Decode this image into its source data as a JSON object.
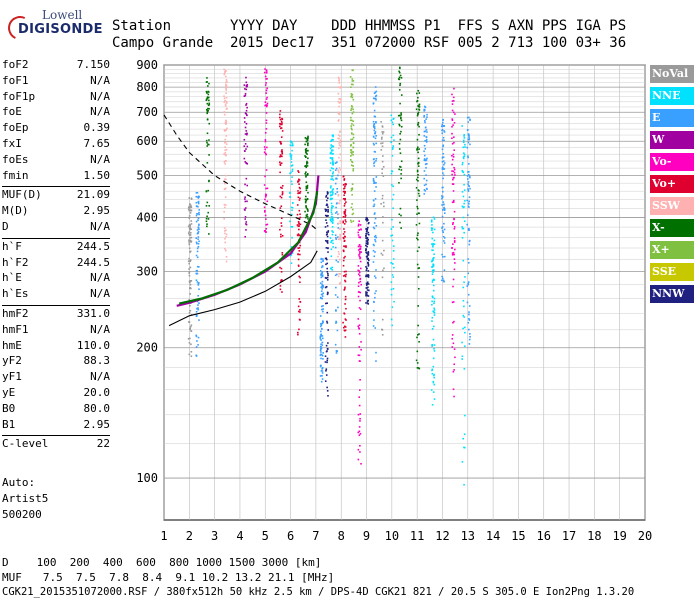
{
  "logo": {
    "line1": "Lowell",
    "line2": "DIGISONDE"
  },
  "header": {
    "row1": "Station       YYYY DAY    DDD HHMMSS P1  FFS S AXN PPS IGA PS",
    "row2": "Campo Grande  2015 Dec17  351 072000 RSF 005 2 713 100 03+ 36"
  },
  "params": [
    {
      "key": "foF2",
      "value": "7.150"
    },
    {
      "key": "foF1",
      "value": "N/A"
    },
    {
      "key": "foF1p",
      "value": "N/A"
    },
    {
      "key": "foE",
      "value": "N/A"
    },
    {
      "key": "foEp",
      "value": "0.39"
    },
    {
      "key": "fxI",
      "value": "7.65"
    },
    {
      "key": "foEs",
      "value": "N/A"
    },
    {
      "key": "fmin",
      "value": "1.50"
    },
    {
      "key": "MUF(D)",
      "value": "21.09"
    },
    {
      "key": "M(D)",
      "value": "2.95"
    },
    {
      "key": "D",
      "value": "N/A"
    },
    {
      "key": "h`F",
      "value": "244.5"
    },
    {
      "key": "h`F2",
      "value": "244.5"
    },
    {
      "key": "h`E",
      "value": "N/A"
    },
    {
      "key": "h`Es",
      "value": "N/A"
    },
    {
      "key": "hmF2",
      "value": "331.0"
    },
    {
      "key": "hmF1",
      "value": "N/A"
    },
    {
      "key": "hmE",
      "value": "110.0"
    },
    {
      "key": "yF2",
      "value": "88.3"
    },
    {
      "key": "yF1",
      "value": "N/A"
    },
    {
      "key": "yE",
      "value": "20.0"
    },
    {
      "key": "B0",
      "value": "80.0"
    },
    {
      "key": "B1",
      "value": "2.95"
    },
    {
      "key": "C-level",
      "value": "22"
    }
  ],
  "auto": {
    "label": "Auto:",
    "artist": "Artist5",
    "version": "500200"
  },
  "legend": [
    {
      "label": "NoVal",
      "bg": "#9a9a9a",
      "fg": "#ffffff"
    },
    {
      "label": "NNE",
      "bg": "#00e0ff",
      "fg": "#ffffff"
    },
    {
      "label": "E",
      "bg": "#3aa0ff",
      "fg": "#ffffff"
    },
    {
      "label": "W",
      "bg": "#a000a0",
      "fg": "#ffffff"
    },
    {
      "label": "Vo-",
      "bg": "#ff00c0",
      "fg": "#ffffff"
    },
    {
      "label": "Vo+",
      "bg": "#e00030",
      "fg": "#ffffff"
    },
    {
      "label": "SSW",
      "bg": "#ffb0b0",
      "fg": "#ffffff"
    },
    {
      "label": "X-",
      "bg": "#007000",
      "fg": "#ffffff"
    },
    {
      "label": "X+",
      "bg": "#80c040",
      "fg": "#ffffff"
    },
    {
      "label": "SSE",
      "bg": "#c8c800",
      "fg": "#ffffff"
    },
    {
      "label": "NNW",
      "bg": "#202080",
      "fg": "#ffffff"
    }
  ],
  "chart_data": {
    "type": "scatter",
    "xlabel": "",
    "ylabel": "",
    "xlim": [
      1,
      20
    ],
    "ylim": [
      80,
      900
    ],
    "x_ticks": [
      "1",
      "2",
      "3",
      "4",
      "5",
      "6",
      "7",
      "8",
      "9",
      "10",
      "11",
      "12",
      "13",
      "14",
      "15",
      "16",
      "17",
      "18",
      "19",
      "20"
    ],
    "y_ticks": [
      "100",
      "200",
      "300",
      "400",
      "500",
      "600",
      "700",
      "800",
      "900"
    ],
    "grid": true,
    "y_scale": "log",
    "series": [
      {
        "color": "#000000",
        "style": "solid",
        "points": [
          [
            1.2,
            225
          ],
          [
            2,
            237
          ],
          [
            3,
            245
          ],
          [
            4,
            255
          ],
          [
            5,
            270
          ],
          [
            6,
            292
          ],
          [
            6.8,
            315
          ],
          [
            7.05,
            335
          ]
        ]
      },
      {
        "color": "#000000",
        "style": "dashed",
        "points": [
          [
            1.0,
            690
          ],
          [
            1.5,
            620
          ],
          [
            2,
            565
          ],
          [
            3,
            500
          ],
          [
            4,
            460
          ],
          [
            5,
            430
          ],
          [
            6,
            405
          ],
          [
            6.8,
            385
          ],
          [
            7.1,
            372
          ]
        ]
      },
      {
        "color": "#a000a0",
        "style": "solid",
        "points": [
          [
            1.5,
            250
          ],
          [
            2,
            254
          ],
          [
            3,
            265
          ],
          [
            4,
            280
          ],
          [
            5,
            300
          ],
          [
            6,
            330
          ],
          [
            6.6,
            370
          ],
          [
            7.0,
            430
          ],
          [
            7.1,
            500
          ]
        ]
      },
      {
        "color": "#007000",
        "style": "solid",
        "points": [
          [
            1.6,
            253
          ],
          [
            2.5,
            260
          ],
          [
            3.5,
            272
          ],
          [
            4.5,
            290
          ],
          [
            5.5,
            315
          ],
          [
            6.3,
            350
          ],
          [
            6.9,
            410
          ],
          [
            7.05,
            460
          ]
        ]
      }
    ]
  },
  "dmuf": {
    "d_label": "D",
    "d_values": "100  200  400  600  800 1000 1500 3000 [km]",
    "muf_label": "MUF",
    "muf_values": "7.5  7.5  7.8  8.4  9.1 10.2 13.2 21.1 [MHz]"
  },
  "footer": "CGK21_2015351072000.RSF / 380fx512h 50 kHz 2.5 km / DPS-4D CGK21 821 / 20.5 S 305.0 E Ion2Png 1.3.20"
}
